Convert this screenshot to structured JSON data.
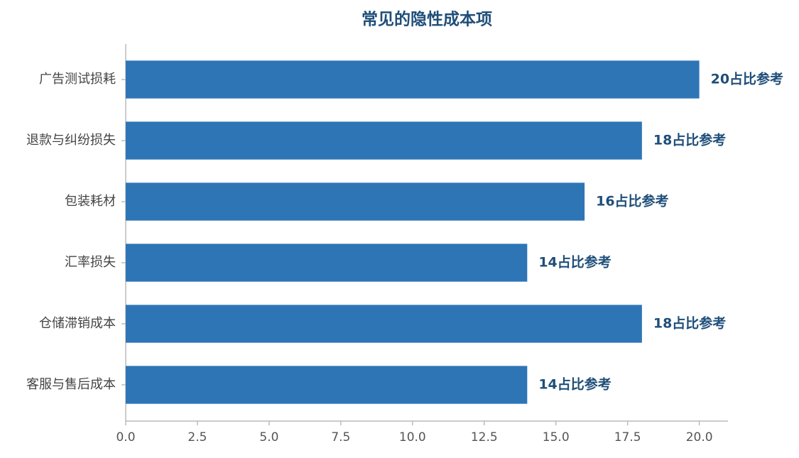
{
  "chart_data": {
    "type": "barh",
    "title": "常见的隐性成本项",
    "categories": [
      "广告测试损耗",
      "退款与纠纷损失",
      "包装耗材",
      "汇率损失",
      "仓储滞销成本",
      "客服与售后成本"
    ],
    "values": [
      20,
      18,
      16,
      14,
      18,
      14
    ],
    "value_labels": [
      "20占比参考",
      "18占比参考",
      "16占比参考",
      "14占比参考",
      "18占比参考",
      "14占比参考"
    ],
    "color": "#2e75b6",
    "xlim": [
      0,
      21
    ],
    "xticks": [
      {
        "value": 0,
        "label": "0.0"
      },
      {
        "value": 2.5,
        "label": "2.5"
      },
      {
        "value": 5,
        "label": "5.0"
      },
      {
        "value": 7.5,
        "label": "7.5"
      },
      {
        "value": 10,
        "label": "10.0"
      },
      {
        "value": 12.5,
        "label": "12.5"
      },
      {
        "value": 15,
        "label": "15.0"
      },
      {
        "value": 17.5,
        "label": "17.5"
      },
      {
        "value": 20,
        "label": "20.0"
      }
    ],
    "grid": false
  }
}
